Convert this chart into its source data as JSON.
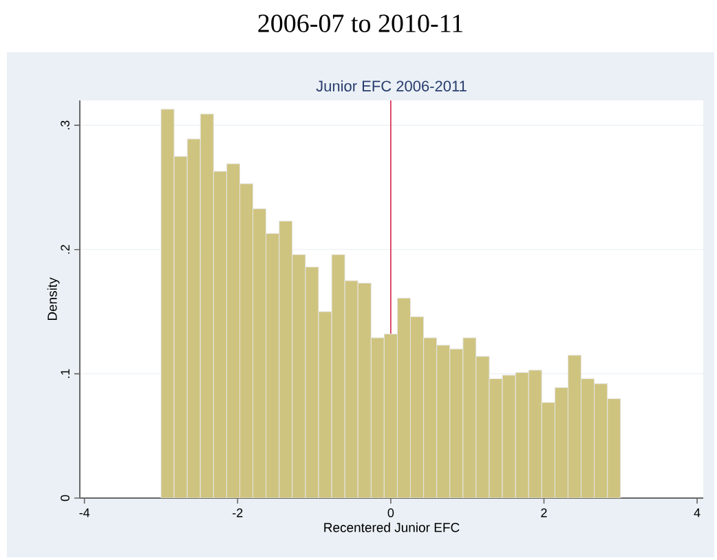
{
  "chart_data": {
    "type": "histogram",
    "title": "2006-07 to 2010-11",
    "subtitle": "Junior EFC 2006-2011",
    "xlabel": "Recentered Junior EFC",
    "ylabel": "Density",
    "bins": [
      -3,
      -2.829,
      -2.657,
      -2.486,
      -2.314,
      -2.143,
      -1.971,
      -1.8,
      -1.629,
      -1.457,
      -1.286,
      -1.114,
      -0.943,
      -0.771,
      -0.6,
      -0.429,
      -0.257,
      -0.086,
      0.086,
      0.257,
      0.429,
      0.6,
      0.771,
      0.943,
      1.114,
      1.286,
      1.457,
      1.629,
      1.8,
      1.971,
      2.143,
      2.314,
      2.486,
      2.657,
      2.829,
      3
    ],
    "values": [
      0.313,
      0.275,
      0.289,
      0.309,
      0.263,
      0.269,
      0.253,
      0.233,
      0.213,
      0.223,
      0.196,
      0.186,
      0.15,
      0.196,
      0.175,
      0.173,
      0.129,
      0.132,
      0.161,
      0.146,
      0.129,
      0.123,
      0.12,
      0.129,
      0.114,
      0.096,
      0.099,
      0.101,
      0.103,
      0.077,
      0.089,
      0.115,
      0.096,
      0.092,
      0.08
    ],
    "color": "#cfc47f",
    "xlim": [
      -4.06,
      4.08
    ],
    "ylim": [
      0,
      0.32
    ],
    "xticks": [
      -4,
      -2,
      0,
      2,
      4
    ],
    "yticks": [
      0,
      {
        "value": 0.1,
        "label": ".1"
      },
      {
        "value": 0.2,
        "label": ".2"
      },
      {
        "value": 0.3,
        "label": ".3"
      }
    ],
    "grid": "y",
    "ref_lines": [
      {
        "axis": "x",
        "value": 0,
        "color": "#d6204a"
      }
    ]
  }
}
